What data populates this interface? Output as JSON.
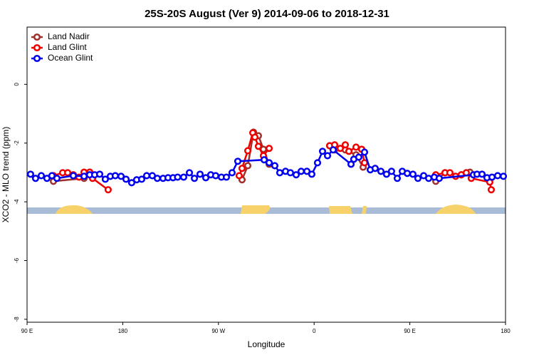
{
  "chart_data": {
    "type": "line",
    "title": "25S-20S August (Ver 9)   2014-09-06 to 2018-12-31",
    "x_label": "Longitude",
    "y_label": "XCO2 - MLO trend (ppm)",
    "xlim": [
      90,
      540
    ],
    "xticks": [
      {
        "value": 90,
        "label": "90 E"
      },
      180,
      {
        "value": 270,
        "label": "90 W"
      },
      {
        "value": 360,
        "label": "0"
      },
      {
        "value": 450,
        "label": "90 E"
      },
      {
        "value": 540,
        "label": "180"
      }
    ],
    "ylim": [
      -8.1,
      1.95
    ],
    "yticks": [
      -8,
      -6,
      -4,
      -2,
      0
    ],
    "legend": "top-left",
    "series": [
      {
        "name": "Land Nadir",
        "color": "#a0302c",
        "x": [
          114.8,
          143.6,
          148.9,
          null,
          292.2,
          297.6,
          303.0,
          307.6,
          312.3,
          317.7,
          null,
          374.6,
          379.3,
          389.3,
          399.4,
          406.1,
          null,
          474.4,
          483.1,
          498.4,
          506.5
        ],
        "values": [
          -3.3,
          -3.2,
          -2.99,
          null,
          -3.25,
          -2.77,
          -1.63,
          -1.75,
          -2.21,
          -2.72,
          null,
          -2.09,
          -2.23,
          -2.23,
          -2.4,
          -2.82,
          null,
          -3.3,
          -3.01,
          -3.08,
          -2.99
        ]
      },
      {
        "name": "Land Glint",
        "color": "#ee0000",
        "x": [
          114.8,
          123.5,
          128.2,
          133.5,
          138.9,
          143.6,
          148.9,
          151.6,
          166.3,
          null,
          289.5,
          292.2,
          297.6,
          302.3,
          304.3,
          307.6,
          312.3,
          317.7,
          null,
          374.6,
          379.3,
          384.6,
          389.3,
          392.7,
          399.4,
          404.7,
          407.4,
          null,
          474.4,
          483.1,
          487.7,
          493.1,
          498.4,
          503.1,
          507.8,
          525.2,
          526.6
        ],
        "values": [
          -3.11,
          -3.01,
          -3.01,
          -3.08,
          -3.16,
          -2.99,
          -2.99,
          -3.2,
          -3.59,
          null,
          -3.11,
          -2.86,
          -2.26,
          -1.65,
          -1.8,
          -2.11,
          -2.43,
          -2.18,
          null,
          -2.09,
          -2.06,
          -2.18,
          -2.06,
          -2.28,
          -2.14,
          -2.21,
          -2.67,
          null,
          -3.08,
          -3.01,
          -3.01,
          -3.13,
          -3.08,
          -3.01,
          -3.2,
          -3.33,
          -3.59
        ]
      },
      {
        "name": "Ocean Glint",
        "color": "#0000ee",
        "x": [
          93.3,
          98.0,
          103.4,
          108.7,
          113.4,
          118.1,
          133.5,
          143.6,
          148.9,
          153.6,
          158.3,
          163.6,
          168.3,
          173.0,
          178.4,
          183.1,
          188.4,
          193.1,
          197.8,
          202.5,
          207.8,
          212.5,
          217.9,
          222.6,
          227.3,
          231.6,
          237.3,
          242.7,
          247.4,
          252.7,
          258.1,
          262.8,
          267.4,
          272.8,
          277.5,
          282.8,
          288.2,
          313.0,
          317.7,
          323.0,
          327.7,
          333.1,
          337.7,
          343.1,
          347.8,
          353.2,
          357.8,
          363.2,
          367.9,
          372.6,
          377.9,
          394.7,
          397.3,
          402.0,
          407.4,
          412.8,
          417.4,
          422.8,
          428.1,
          432.8,
          438.2,
          442.9,
          447.6,
          452.9,
          457.6,
          463.0,
          467.7,
          473.0,
          477.7,
          509.8,
          513.2,
          517.9,
          522.6,
          527.3,
          532.6,
          538.0
        ],
        "values": [
          -3.06,
          -3.2,
          -3.11,
          -3.2,
          -3.11,
          -3.2,
          -3.11,
          -3.13,
          -3.08,
          -3.08,
          -3.06,
          -3.23,
          -3.13,
          -3.11,
          -3.13,
          -3.23,
          -3.35,
          -3.25,
          -3.23,
          -3.11,
          -3.11,
          -3.2,
          -3.2,
          -3.18,
          -3.18,
          -3.16,
          -3.16,
          -3.01,
          -3.2,
          -3.06,
          -3.18,
          -3.08,
          -3.11,
          -3.16,
          -3.16,
          -3.01,
          -2.62,
          -2.57,
          -2.67,
          -2.77,
          -3.01,
          -2.96,
          -3.01,
          -3.08,
          -2.96,
          -2.96,
          -3.06,
          -2.67,
          -2.28,
          -2.43,
          -2.23,
          -2.72,
          -2.55,
          -2.48,
          -2.31,
          -2.91,
          -2.86,
          -2.96,
          -3.06,
          -2.96,
          -3.2,
          -2.96,
          -3.03,
          -3.06,
          -3.2,
          -3.11,
          -3.2,
          -3.16,
          -3.2,
          -3.08,
          -3.06,
          -3.06,
          -3.18,
          -3.16,
          -3.11,
          -3.13
        ]
      }
    ]
  }
}
